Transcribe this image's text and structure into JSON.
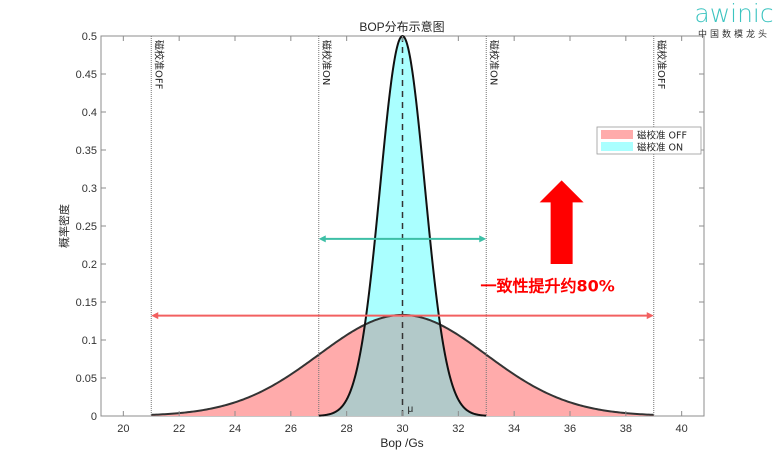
{
  "logo": {
    "main": "awinic",
    "sub": "中国数模龙头",
    "color": "#3cc4c0"
  },
  "chart_data": {
    "type": "area",
    "title": "BOP分布示意图",
    "xlabel": "Bop /Gs",
    "ylabel": "概率密度",
    "xlim": [
      19.2,
      40.8
    ],
    "ylim": [
      0,
      0.5
    ],
    "xticks": [
      20,
      22,
      24,
      26,
      28,
      30,
      32,
      34,
      36,
      38,
      40
    ],
    "yticks": [
      0,
      0.05,
      0.1,
      0.15,
      0.2,
      0.25,
      0.3,
      0.35,
      0.4,
      0.45,
      0.5
    ],
    "ytick_labels": [
      "0",
      "0.05",
      "0.1",
      "0.15",
      "0.2",
      "0.25",
      "0.3",
      "0.35",
      "0.4",
      "0.45",
      "0.5"
    ],
    "grid": false,
    "legend_position": "upper right",
    "series": [
      {
        "name": "磁校准 OFF",
        "distribution": "normal",
        "mean": 30,
        "sigma": 3.0,
        "range": [
          21,
          39
        ],
        "peak": 0.133,
        "fill": "#ffabab",
        "stroke": "#000000"
      },
      {
        "name": "磁校准 ON",
        "distribution": "normal",
        "mean": 30,
        "sigma": 0.798,
        "range": [
          27,
          33
        ],
        "peak": 0.5,
        "fill": "#aaffff",
        "stroke": "#000000"
      }
    ],
    "overlap_fill": "#b2c9c9",
    "mean_line": {
      "x": 30,
      "label": "μ",
      "style": "dashed"
    },
    "vlines": [
      {
        "x": 21,
        "label": "磁校准OFF"
      },
      {
        "x": 27,
        "label": "磁校准ON"
      },
      {
        "x": 33,
        "label": "磁校准ON"
      },
      {
        "x": 39,
        "label": "磁校准OFF"
      }
    ],
    "annotations": [
      {
        "type": "double-arrow",
        "x1": 27,
        "x2": 33,
        "y": 0.233,
        "color": "#3dbfa6"
      },
      {
        "type": "double-arrow",
        "x1": 21,
        "x2": 39,
        "y": 0.132,
        "color": "#f26060"
      },
      {
        "type": "text",
        "text": "一致性提升约80%",
        "x": 35.2,
        "y": 0.164,
        "color": "#ff0000"
      },
      {
        "type": "up-arrow",
        "x": 35.7,
        "y_bottom": 0.2,
        "y_top": 0.31,
        "color": "#ff0000"
      }
    ]
  }
}
